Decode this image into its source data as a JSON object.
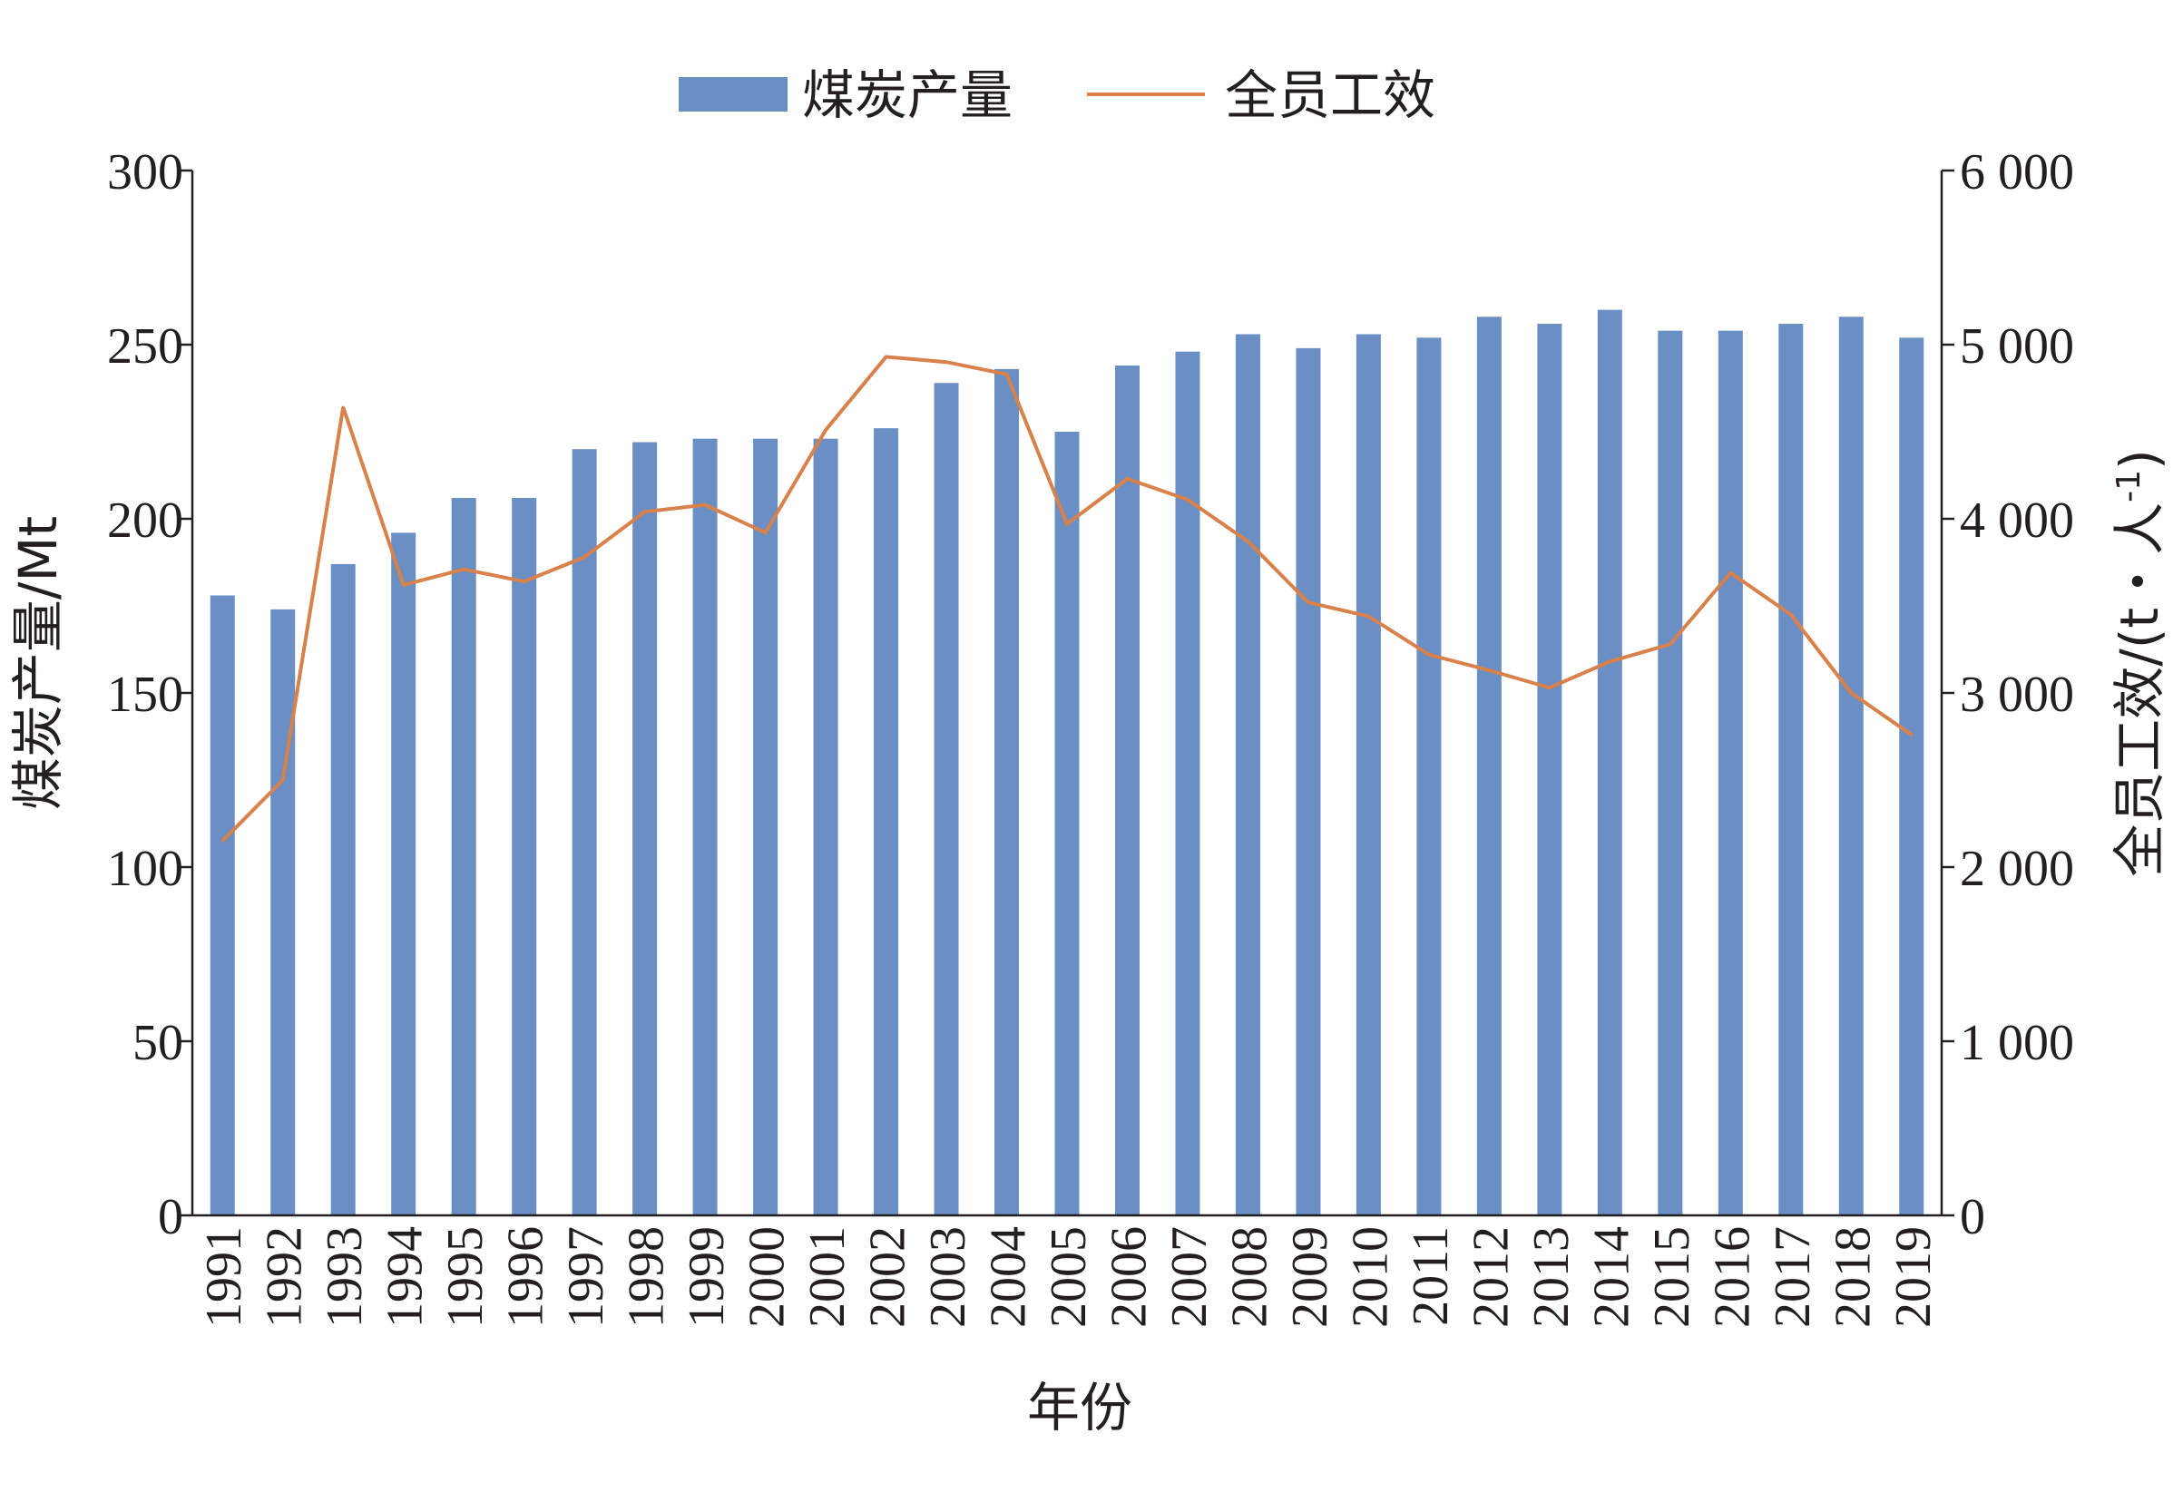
{
  "chart_data": {
    "type": "bar+line",
    "categories": [
      "1991",
      "1992",
      "1993",
      "1994",
      "1995",
      "1996",
      "1997",
      "1998",
      "1999",
      "2000",
      "2001",
      "2002",
      "2003",
      "2004",
      "2005",
      "2006",
      "2007",
      "2008",
      "2009",
      "2010",
      "2011",
      "2012",
      "2013",
      "2014",
      "2015",
      "2016",
      "2017",
      "2018",
      "2019"
    ],
    "series": [
      {
        "name": "煤炭产量",
        "type": "bar",
        "axis": "left",
        "color": "#6a8fc4",
        "values": [
          178,
          174,
          187,
          196,
          206,
          206,
          220,
          222,
          223,
          223,
          223,
          226,
          239,
          243,
          225,
          244,
          248,
          253,
          249,
          253,
          252,
          258,
          256,
          260,
          254,
          254,
          256,
          258,
          252
        ]
      },
      {
        "name": "全员工效",
        "type": "line",
        "axis": "right",
        "color": "#d9814a",
        "values": [
          2150,
          2500,
          4640,
          3620,
          3710,
          3640,
          3780,
          4040,
          4080,
          3920,
          4510,
          4930,
          4900,
          4830,
          3970,
          4230,
          4110,
          3870,
          3520,
          3440,
          3220,
          3130,
          3030,
          3180,
          3280,
          3690,
          3450,
          3000,
          2760
        ]
      }
    ],
    "xlabel": "年份",
    "ylabel": "煤炭产量/Mt",
    "y2label": "全员工效/(t・人",
    "y2label_sup": "-1",
    "y2label_close": ")",
    "ylim": [
      0,
      300
    ],
    "y2lim": [
      0,
      6000
    ],
    "yticks": [
      0,
      50,
      100,
      150,
      200,
      250,
      300
    ],
    "yticklabels": [
      "0",
      "50",
      "100",
      "150",
      "200",
      "250",
      "300"
    ],
    "y2ticks": [
      0,
      1000,
      2000,
      3000,
      4000,
      5000,
      6000
    ],
    "y2ticklabels": [
      "0",
      "1 000",
      "2 000",
      "3 000",
      "4 000",
      "5 000",
      "6 000"
    ],
    "legend_position": "top-center",
    "grid": false
  }
}
